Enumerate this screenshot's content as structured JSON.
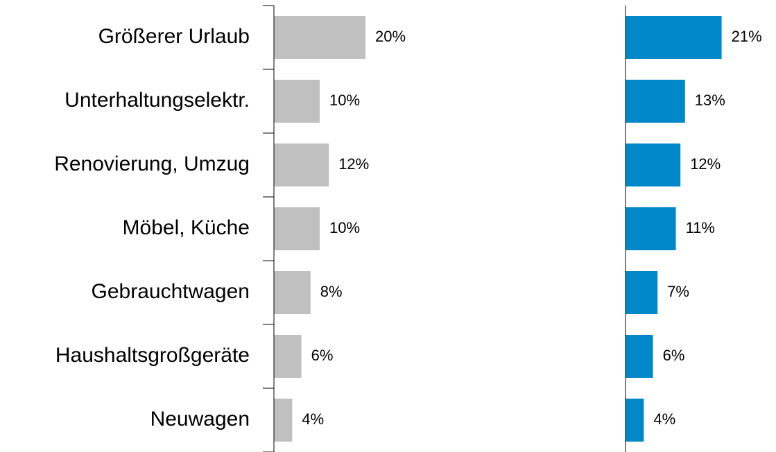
{
  "chart_data": {
    "type": "bar",
    "orientation": "horizontal",
    "categories": [
      "Größerer Urlaub",
      "Unterhaltungselektr.",
      "Renovierung, Umzug",
      "Möbel, Küche",
      "Gebrauchtwagen",
      "Haushaltsgroßgeräte",
      "Neuwagen"
    ],
    "xlim": [
      0,
      30
    ],
    "series": [
      {
        "color": "#c0c0c0",
        "values": [
          20,
          10,
          12,
          10,
          8,
          6,
          4
        ],
        "value_labels": [
          "20%",
          "10%",
          "12%",
          "10%",
          "8%",
          "6%",
          "4%"
        ]
      },
      {
        "color": "#0088c8",
        "values": [
          21,
          13,
          12,
          11,
          7,
          6,
          4
        ],
        "value_labels": [
          "21%",
          "13%",
          "12%",
          "11%",
          "7%",
          "6%",
          "4%"
        ]
      }
    ]
  }
}
